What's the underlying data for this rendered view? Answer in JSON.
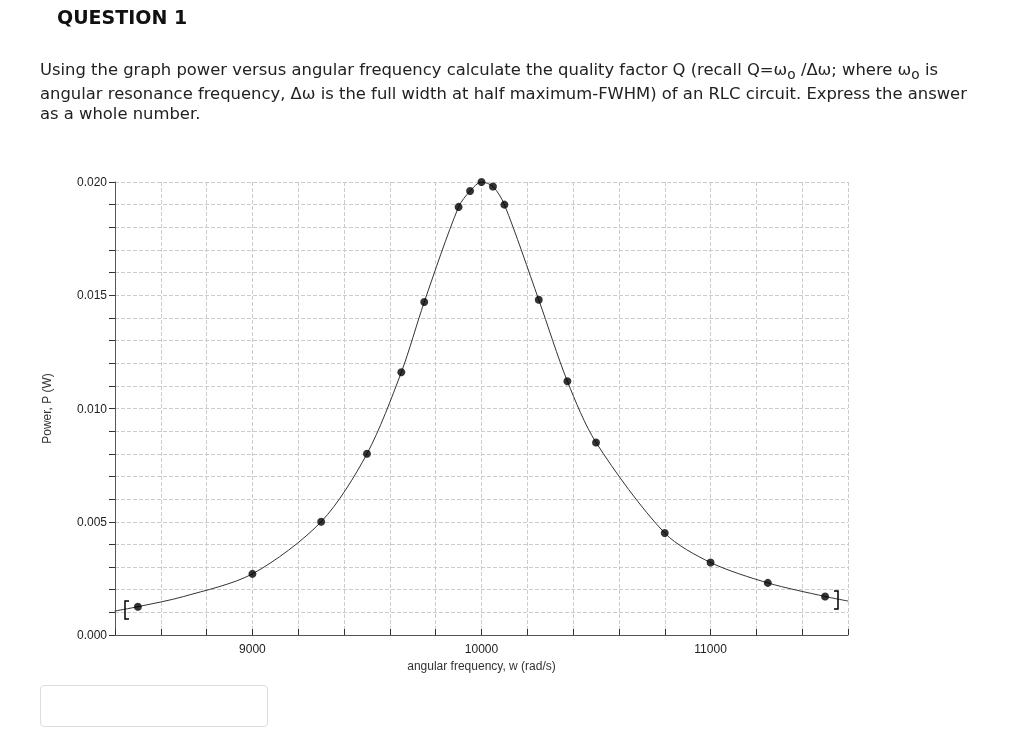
{
  "chart_data": {
    "type": "scatter",
    "title": "QUESTION 1",
    "subtitle": "Using the graph power versus angular frequency calculate the quality factor Q (recall Q=ω$_{o}$ /Δω; where ω$_{o}$ is angular resonance  frequency, Δω is the full width at half maximum-FWHM) of an RLC circuit. Express the answer as a whole number.",
    "xlabel": "angular frequency, w (rad/s)",
    "ylabel": "Power, P (W)",
    "series": [
      {
        "color": "#000000",
        "marker": "circle",
        "x": [
          8500,
          9000,
          9300,
          9500,
          9650,
          9750,
          9900,
          9950,
          10000,
          10050,
          10100,
          10250,
          10375,
          10500,
          10800,
          11000,
          11250,
          11500
        ],
        "values": [
          0.00125,
          0.0027,
          0.005,
          0.008,
          0.0116,
          0.0147,
          0.0189,
          0.0196,
          0.02,
          0.0198,
          0.019,
          0.0148,
          0.0112,
          0.0085,
          0.0045,
          0.0032,
          0.0023,
          0.0017
        ]
      },
      {
        "type": "line",
        "color": "#333333",
        "marker": "none",
        "line_style": "solid",
        "x": [
          8400,
          8500,
          8700,
          9000,
          9300,
          9500,
          9650,
          9750,
          9900,
          9950,
          10000,
          10050,
          10100,
          10250,
          10375,
          10500,
          10800,
          11000,
          11250,
          11500,
          11600
        ],
        "values": [
          0.00106,
          0.00125,
          0.0017,
          0.0027,
          0.005,
          0.008,
          0.0116,
          0.0147,
          0.0189,
          0.0196,
          0.02,
          0.0198,
          0.019,
          0.0148,
          0.0112,
          0.0085,
          0.0045,
          0.0032,
          0.0023,
          0.0017,
          0.0015
        ]
      }
    ],
    "xlim": [
      8400,
      11600
    ],
    "xticks": [
      {
        "value": 8400,
        "label": null
      },
      {
        "value": 8600,
        "label": null
      },
      {
        "value": 8800,
        "label": null
      },
      9000,
      {
        "value": 9200,
        "label": null
      },
      {
        "value": 9400,
        "label": null
      },
      {
        "value": 9600,
        "label": null
      },
      {
        "value": 9800,
        "label": null
      },
      10000,
      {
        "value": 10200,
        "label": null
      },
      {
        "value": 10400,
        "label": null
      },
      {
        "value": 10600,
        "label": null
      },
      {
        "value": 10800,
        "label": null
      },
      11000,
      {
        "value": 11200,
        "label": null
      },
      {
        "value": 11400,
        "label": null
      },
      {
        "value": 11600,
        "label": null
      }
    ],
    "ylim": [
      0,
      0.02
    ],
    "yticks": [
      {
        "value": 0,
        "label": "0.000"
      },
      {
        "value": 0.001,
        "label": null
      },
      {
        "value": 0.002,
        "label": null
      },
      {
        "value": 0.003,
        "label": null
      },
      {
        "value": 0.004,
        "label": null
      },
      0.005,
      {
        "value": 0.006,
        "label": null
      },
      {
        "value": 0.007,
        "label": null
      },
      {
        "value": 0.008,
        "label": null
      },
      {
        "value": 0.009,
        "label": null
      },
      {
        "value": 0.01,
        "label": "0.010"
      },
      {
        "value": 0.011,
        "label": null
      },
      {
        "value": 0.012,
        "label": null
      },
      {
        "value": 0.013,
        "label": null
      },
      {
        "value": 0.014,
        "label": null
      },
      0.015,
      {
        "value": 0.016,
        "label": null
      },
      {
        "value": 0.017,
        "label": null
      },
      {
        "value": 0.018,
        "label": null
      },
      {
        "value": 0.019,
        "label": null
      },
      {
        "value": 0.02,
        "label": "0.020"
      }
    ],
    "grid": true
  }
}
